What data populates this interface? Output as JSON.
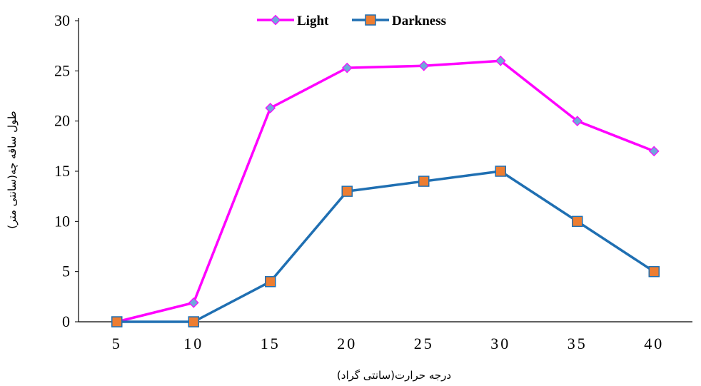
{
  "chart_data": {
    "type": "line",
    "title": "",
    "xlabel": "درجه حرارت(سانتی گراد)",
    "ylabel": "طول ساقه چه(سانتی متر)",
    "x": [
      5,
      10,
      15,
      20,
      25,
      30,
      35,
      40
    ],
    "x_tick_labels": [
      "5",
      "10",
      "15",
      "20",
      "25",
      "30",
      "35",
      "40"
    ],
    "ylim": [
      0,
      30
    ],
    "y_ticks": [
      0,
      5,
      10,
      15,
      20,
      25,
      30
    ],
    "grid": false,
    "legend_position": "top-center",
    "series": [
      {
        "name": "Light",
        "values": [
          0,
          1.9,
          21.3,
          25.3,
          25.5,
          26,
          20,
          17
        ],
        "color": "#ff00ff",
        "marker": "diamond",
        "marker_color": "#6fa8dc"
      },
      {
        "name": "Darkness",
        "values": [
          0,
          0,
          4,
          13,
          14,
          15,
          10,
          5
        ],
        "color": "#1f6fb2",
        "marker": "square",
        "marker_color": "#ed7d31"
      }
    ]
  }
}
